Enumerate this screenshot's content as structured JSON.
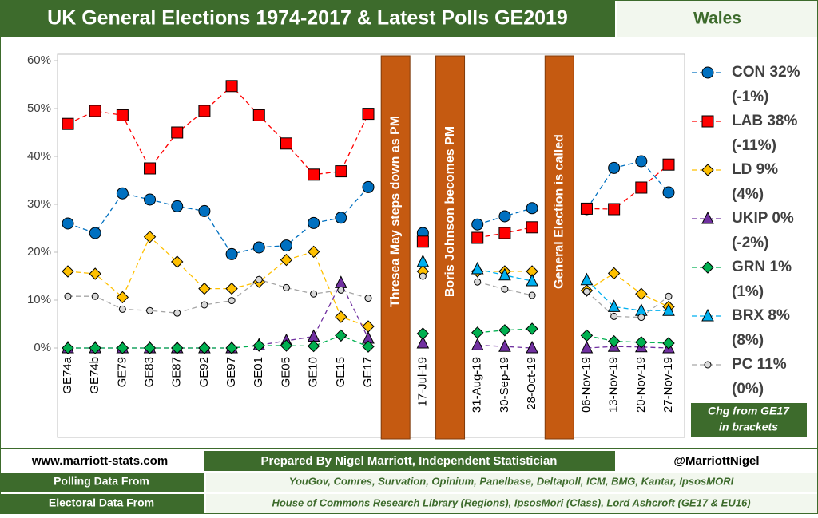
{
  "header": {
    "title": "UK General Elections 1974-2017 & Latest Polls GE2019",
    "region": "Wales"
  },
  "chart_data": {
    "type": "line",
    "categories": [
      "GE74a",
      "GE74b",
      "GE79",
      "GE83",
      "GE87",
      "GE92",
      "GE97",
      "GE01",
      "GE05",
      "GE10",
      "GE15",
      "GE17",
      null,
      "17-Jul-19",
      null,
      "31-Aug-19",
      "30-Sep-19",
      "28-Oct-19",
      null,
      "06-Nov-19",
      "13-Nov-19",
      "20-Nov-19",
      "27-Nov-19"
    ],
    "ylim": [
      0,
      60
    ],
    "yticks": [
      {
        "value": 0,
        "label": "0%"
      },
      {
        "value": 10,
        "label": "10%"
      },
      {
        "value": 20,
        "label": "20%"
      },
      {
        "value": 30,
        "label": "30%"
      },
      {
        "value": 40,
        "label": "40%"
      },
      {
        "value": 50,
        "label": "50%"
      },
      {
        "value": 60,
        "label": "60%"
      }
    ],
    "grid": false,
    "annotations": [
      "Thresea May steps down as PM",
      "Boris Johnson becomes PM",
      "General Election is called"
    ],
    "note": [
      "Chg from GE17",
      "in brackets"
    ],
    "series": [
      {
        "name": "CON 32%",
        "change": "(-1%)",
        "color": "#0070c0",
        "marker": "circle",
        "values": [
          26,
          24,
          32.3,
          31,
          29.6,
          28.6,
          19.6,
          21,
          21.4,
          26.1,
          27.2,
          33.6,
          null,
          24,
          null,
          25.8,
          27.5,
          29.2,
          null,
          29,
          37.6,
          39,
          32.5
        ]
      },
      {
        "name": "LAB 38%",
        "change": "(-11%)",
        "color": "#ff0000",
        "marker": "square",
        "values": [
          46.8,
          49.5,
          48.6,
          37.5,
          45,
          49.5,
          54.7,
          48.6,
          42.7,
          36.2,
          36.9,
          48.9,
          null,
          22.2,
          null,
          23,
          24,
          25.2,
          null,
          29.1,
          29,
          33.5,
          38.3
        ]
      },
      {
        "name": "LD 9%",
        "change": "(4%)",
        "color": "#ffc000",
        "marker": "diamond",
        "values": [
          16,
          15.5,
          10.6,
          23.2,
          18,
          12.4,
          12.4,
          13.8,
          18.4,
          20.1,
          6.5,
          4.5,
          null,
          16,
          null,
          16,
          16,
          16,
          null,
          12,
          15.6,
          11.3,
          8.6
        ]
      },
      {
        "name": "UKIP 0%",
        "change": "(-2%)",
        "color": "#7030a0",
        "marker": "triangle",
        "values": [
          0,
          0,
          0,
          0,
          0,
          0,
          0,
          0.6,
          1.5,
          2.4,
          13.6,
          2,
          null,
          1,
          null,
          0.6,
          0.3,
          0,
          null,
          0,
          0.3,
          0.2,
          0
        ]
      },
      {
        "name": "GRN 1%",
        "change": "(1%)",
        "color": "#00b050",
        "marker": "diamond",
        "values": [
          0,
          0,
          0,
          0,
          0,
          0,
          0,
          0.5,
          0.5,
          0.4,
          2.6,
          0.3,
          null,
          3,
          null,
          3.2,
          3.7,
          4,
          null,
          2.6,
          1.4,
          1.2,
          1
        ]
      },
      {
        "name": "BRX 8%",
        "change": "(8%)",
        "color": "#00b0f0",
        "marker": "triangle",
        "values": [
          null,
          null,
          null,
          null,
          null,
          null,
          null,
          null,
          null,
          null,
          null,
          null,
          null,
          18,
          null,
          16.5,
          15.2,
          14,
          null,
          14.2,
          8.6,
          7.8,
          7.8
        ]
      },
      {
        "name": "PC 11%",
        "change": "(0%)",
        "color": "#a6a6a6",
        "marker": "small-circle",
        "values": [
          10.8,
          10.8,
          8.1,
          7.8,
          7.3,
          9,
          9.9,
          14.3,
          12.6,
          11.3,
          12.1,
          10.4,
          null,
          15,
          null,
          13.8,
          12.3,
          11,
          null,
          11.8,
          6.6,
          6.4,
          10.8
        ]
      }
    ]
  },
  "footer": {
    "website": "www.marriott-stats.com",
    "prepared_by": "Prepared By Nigel Marriott, Independent Statistician",
    "twitter": "@MarriottNigel",
    "rows": [
      {
        "label": "Polling Data From",
        "value": "YouGov, Comres, Survation, Opinium, Panelbase, Deltapoll, ICM, BMG, Kantar, IpsosMORI"
      },
      {
        "label": "Electoral Data From",
        "value": "House of Commons Research Library (Regions), IpsosMori (Class), Lord Ashcroft (GE17 & EU16)"
      }
    ]
  }
}
